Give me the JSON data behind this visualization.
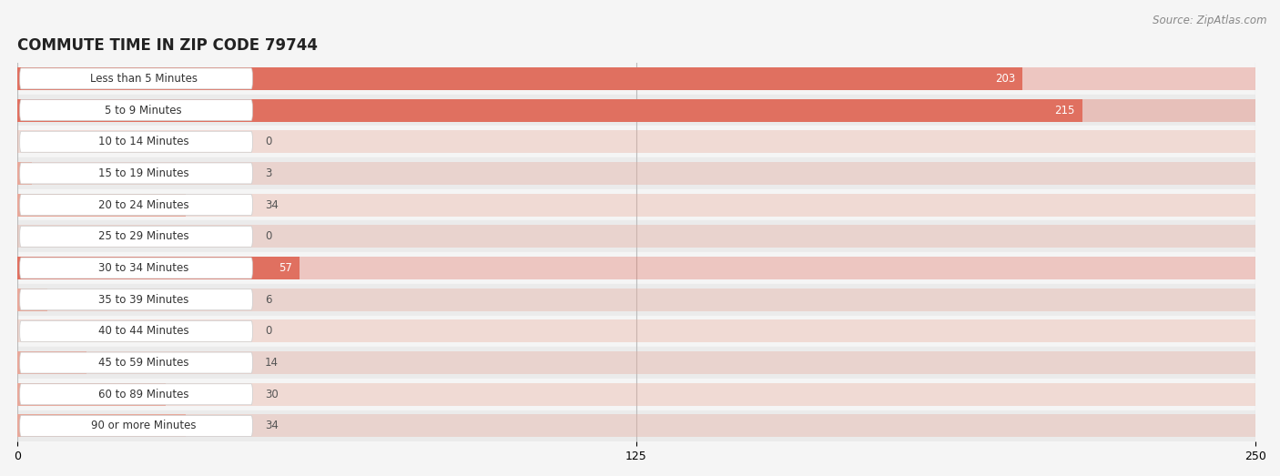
{
  "title": "COMMUTE TIME IN ZIP CODE 79744",
  "source": "Source: ZipAtlas.com",
  "categories": [
    "Less than 5 Minutes",
    "5 to 9 Minutes",
    "10 to 14 Minutes",
    "15 to 19 Minutes",
    "20 to 24 Minutes",
    "25 to 29 Minutes",
    "30 to 34 Minutes",
    "35 to 39 Minutes",
    "40 to 44 Minutes",
    "45 to 59 Minutes",
    "60 to 89 Minutes",
    "90 or more Minutes"
  ],
  "values": [
    203,
    215,
    0,
    3,
    34,
    0,
    57,
    6,
    0,
    14,
    30,
    34
  ],
  "bar_color_large": "#e07060",
  "bar_color_small": "#e8a89a",
  "label_color_large": "#ffffff",
  "label_color_small": "#555555",
  "background_color": "#f5f5f5",
  "row_bg_color_even": "#f5f5f5",
  "row_bg_color_odd": "#ebebeb",
  "pill_bg": "#ffffff",
  "pill_left_color_large": "#e07060",
  "pill_left_color_small": "#e8a89a",
  "title_fontsize": 12,
  "source_fontsize": 8.5,
  "label_fontsize": 8.5,
  "value_fontsize": 8.5,
  "tick_fontsize": 9,
  "xlim": [
    0,
    250
  ],
  "xticks": [
    0,
    125,
    250
  ],
  "large_threshold": 50,
  "full_bar_color_large": "#e07060",
  "full_bar_color_small": "#e8a898"
}
